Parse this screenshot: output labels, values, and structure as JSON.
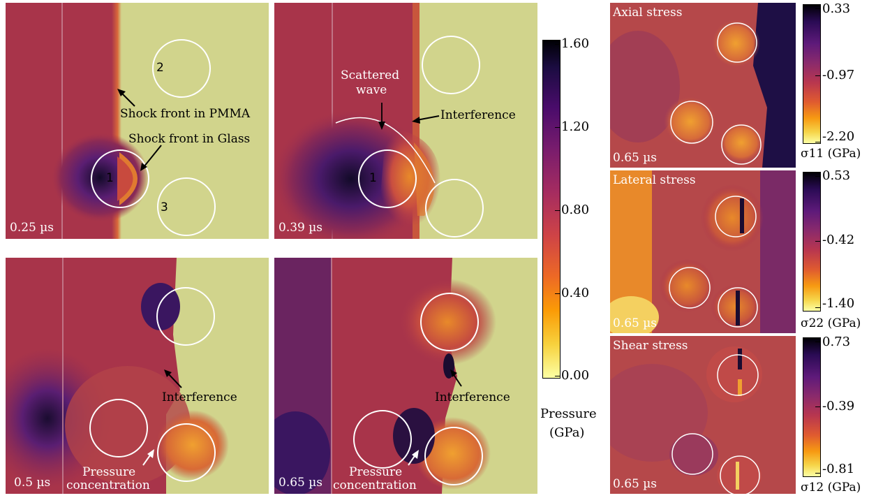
{
  "pressure_panels": {
    "p1": {
      "time": "0.25 µs",
      "labels": {
        "shock_pmma": "Shock front in PMMA",
        "shock_glass": "Shock front in Glass",
        "n1": "1",
        "n2": "2",
        "n3": "3"
      }
    },
    "p2": {
      "time": "0.39 µs",
      "labels": {
        "scattered1": "Scattered",
        "scattered2": "wave",
        "interference": "Interference",
        "n1": "1"
      }
    },
    "p3": {
      "time": "0.5 µs",
      "labels": {
        "interference": "Interference",
        "pressure1": "Pressure",
        "pressure2": "concentration"
      }
    },
    "p4": {
      "time": "0.65 µs",
      "labels": {
        "interference": "Interference",
        "pressure1": "Pressure",
        "pressure2": "concentration"
      }
    }
  },
  "pressure_colorbar": {
    "ticks": [
      "1.60",
      "1.20",
      "0.80",
      "0.40",
      "0.00"
    ],
    "label1": "Pressure",
    "label2": "(GPa)"
  },
  "stress_panels": {
    "axial": {
      "title": "Axial stress",
      "time": "0.65 µs",
      "ticks": [
        "0.33",
        "-0.97",
        "-2.20"
      ],
      "label": "σ11 (GPa)"
    },
    "lateral": {
      "title": "Lateral stress",
      "time": "0.65 µs",
      "ticks": [
        "0.53",
        "-0.42",
        "-1.40"
      ],
      "label": "σ22 (GPa)"
    },
    "shear": {
      "title": "Shear stress",
      "time": "0.65 µs",
      "ticks": [
        "0.73",
        "-0.39",
        "-0.81"
      ],
      "label": "σ12 (GPa)"
    }
  },
  "colors": {
    "pmma": "#a8344a",
    "glass_bg": "#d1d48c",
    "dark": "#120a28",
    "orange": "#e8892a",
    "yellow": "#f3d86b"
  }
}
